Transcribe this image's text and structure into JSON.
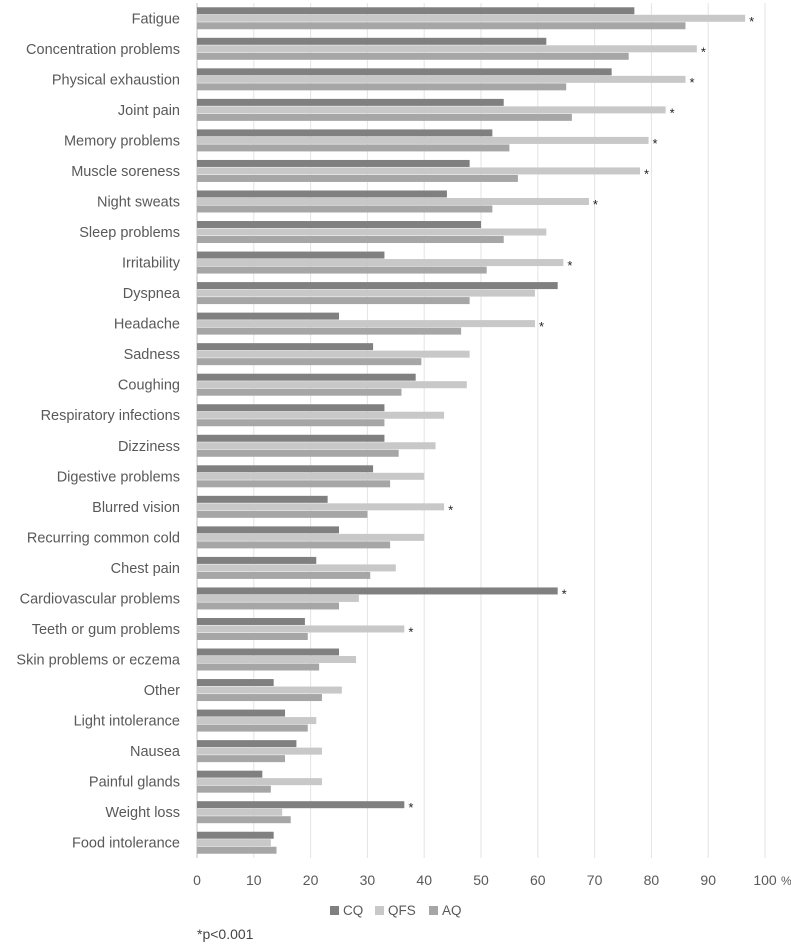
{
  "chart_data": {
    "type": "bar",
    "orientation": "horizontal",
    "categories": [
      "Fatigue",
      "Concentration problems",
      "Physical exhaustion",
      "Joint pain",
      "Memory problems",
      "Muscle soreness",
      "Night sweats",
      "Sleep problems",
      "Irritability",
      "Dyspnea",
      "Headache",
      "Sadness",
      "Coughing",
      "Respiratory infections",
      "Dizziness ",
      "Digestive problems",
      "Blurred vision",
      "Recurring common cold",
      "Chest pain",
      "Cardiovascular problems",
      "Teeth or gum problems",
      "Skin problems or eczema ",
      "Other",
      "Light intolerance",
      "Nausea",
      "Painful glands",
      "Weight loss",
      "Food intolerance"
    ],
    "series": [
      {
        "name": "CQ",
        "color": "#808080",
        "values": [
          77,
          61.5,
          73,
          54,
          52,
          48,
          44,
          50,
          33,
          63.5,
          25,
          31,
          38.5,
          33,
          33,
          31,
          23,
          25,
          21,
          63.5,
          19,
          25,
          13.5,
          15.5,
          17.5,
          11.5,
          36.5,
          13.5
        ]
      },
      {
        "name": "QFS",
        "color": "#c8c8c8",
        "values": [
          96.5,
          88,
          86,
          82.5,
          79.5,
          78,
          69,
          61.5,
          64.5,
          59.5,
          59.5,
          48,
          47.5,
          43.5,
          42,
          40,
          43.5,
          40,
          35,
          28.5,
          36.5,
          28,
          25.5,
          21,
          22,
          22,
          15,
          13
        ]
      },
      {
        "name": "AQ",
        "color": "#a6a6a6",
        "values": [
          86,
          76,
          65,
          66,
          55,
          56.5,
          52,
          54,
          51,
          48,
          46.5,
          39.5,
          36,
          33,
          35.5,
          34,
          30,
          34,
          30.5,
          25,
          19.5,
          21.5,
          22,
          19.5,
          15.5,
          13,
          16.5,
          14
        ]
      }
    ],
    "significance_markers": [
      {
        "category_index": 0,
        "series": "QFS",
        "label": "*"
      },
      {
        "category_index": 1,
        "series": "QFS",
        "label": "*"
      },
      {
        "category_index": 2,
        "series": "QFS",
        "label": "*"
      },
      {
        "category_index": 3,
        "series": "QFS",
        "label": "*"
      },
      {
        "category_index": 4,
        "series": "QFS",
        "label": "*"
      },
      {
        "category_index": 5,
        "series": "QFS",
        "label": "*"
      },
      {
        "category_index": 6,
        "series": "QFS",
        "label": "*"
      },
      {
        "category_index": 8,
        "series": "QFS",
        "label": "*"
      },
      {
        "category_index": 10,
        "series": "QFS",
        "label": "*"
      },
      {
        "category_index": 16,
        "series": "QFS",
        "label": "*"
      },
      {
        "category_index": 19,
        "series": "CQ",
        "label": "*"
      },
      {
        "category_index": 20,
        "series": "QFS",
        "label": "*"
      },
      {
        "category_index": 26,
        "series": "CQ",
        "label": "*"
      }
    ],
    "x_ticks": [
      0,
      10,
      20,
      30,
      40,
      50,
      60,
      70,
      80,
      90,
      100
    ],
    "x_unit": "%",
    "xlim": [
      0,
      100
    ],
    "title": "",
    "xlabel": "",
    "ylabel": "",
    "grid": "vertical",
    "legend_position": "bottom",
    "footnote": "*p<0.001"
  }
}
